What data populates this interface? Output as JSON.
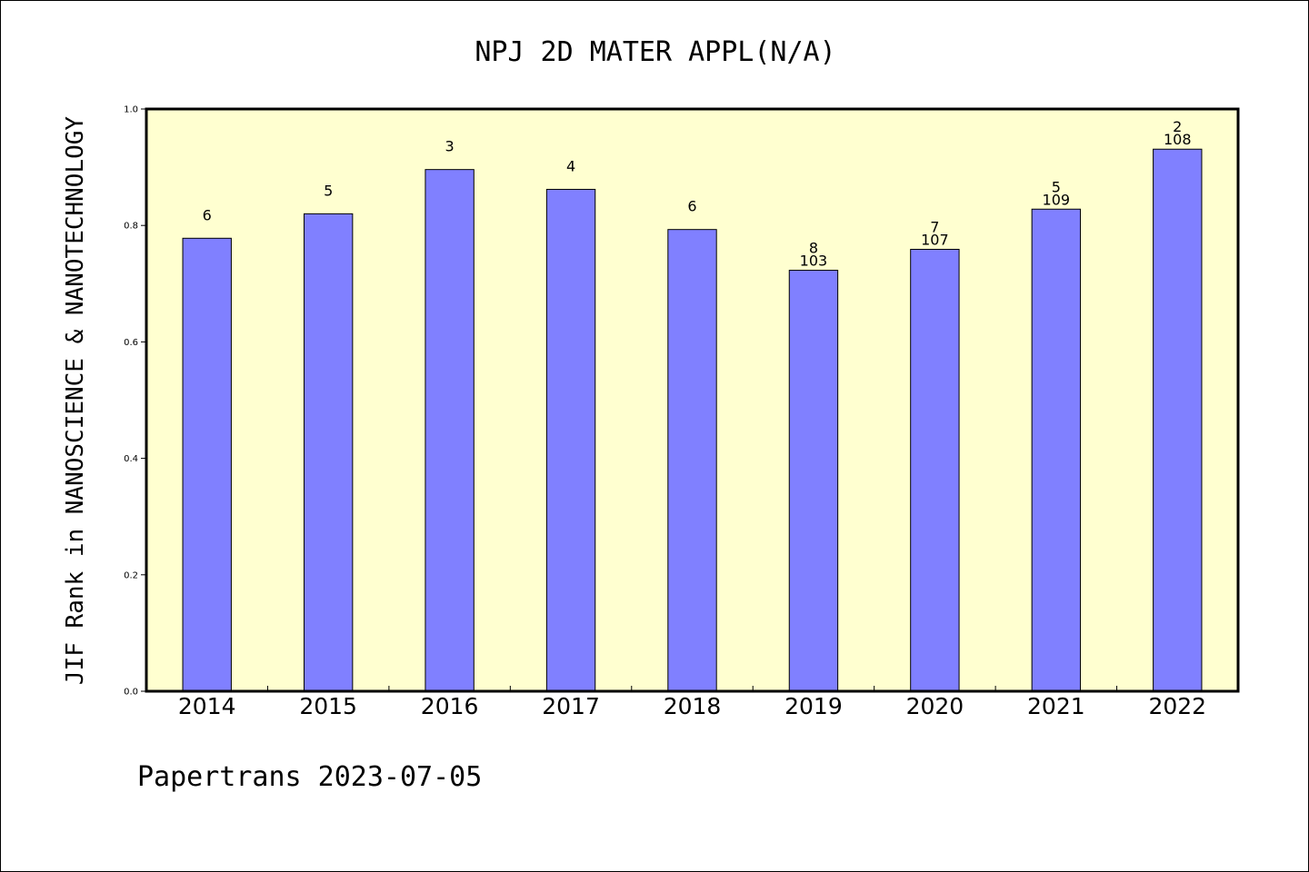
{
  "chart_data": {
    "type": "bar",
    "title": "NPJ 2D MATER APPL(N/A)",
    "xlabel": "",
    "ylabel": "JIF Rank in NANOSCIENCE & NANOTECHNOLOGY",
    "ylim": [
      0,
      1.0
    ],
    "yticks": [
      "0.0",
      "0.2",
      "0.4",
      "0.6",
      "0.8",
      "1.0"
    ],
    "categories": [
      "2014",
      "2015",
      "2016",
      "2017",
      "2018",
      "2019",
      "2020",
      "2021",
      "2022"
    ],
    "values": [
      0.778,
      0.82,
      0.896,
      0.862,
      0.793,
      0.723,
      0.759,
      0.828,
      0.931
    ],
    "rank_labels": [
      "6",
      "5",
      "3",
      "4",
      "6",
      "8",
      "7",
      "5",
      "2"
    ],
    "total_labels": [
      "",
      "",
      "",
      "",
      "",
      "103",
      "107",
      "109",
      "108"
    ],
    "bar_color": "#8080ff",
    "plot_background": "#ffffd0",
    "grid": false,
    "legend": "none"
  },
  "footer": {
    "text": "Papertrans 2023-07-05"
  }
}
